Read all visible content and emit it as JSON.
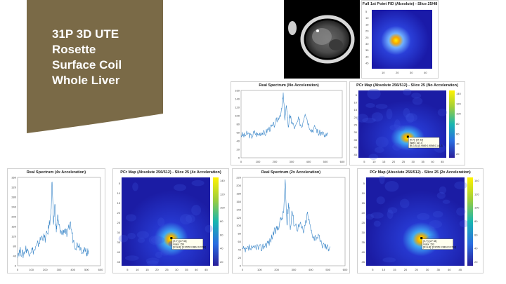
{
  "slide": {
    "title_lines": [
      "31P 3D UTE",
      "Rosette",
      "Surface Coil",
      "Whole Liver"
    ],
    "colors": {
      "title_bg": "#7a6a47",
      "title_text": "#ffffff",
      "line": "#3a86c8"
    }
  },
  "images": {
    "anatomy": {
      "label": "mri-anatomy-image"
    },
    "fid": {
      "title": "Full 1st Point FID (Absolute) - Slice 25/48",
      "ticks": [
        "10",
        "20",
        "30",
        "40"
      ],
      "yticks": [
        "5",
        "10",
        "15",
        "20",
        "25",
        "30",
        "35",
        "40",
        "45"
      ]
    }
  },
  "spectra": [
    {
      "id": "no-accel",
      "title": "Real Spectrum (No Acceleration)",
      "chart_data": {
        "type": "line",
        "xlim": [
          0,
          600
        ],
        "ylim": [
          0,
          160
        ],
        "xticks": [
          "0",
          "100",
          "200",
          "300",
          "400",
          "500",
          "600"
        ],
        "yticks": [
          "0",
          "20",
          "40",
          "60",
          "80",
          "100",
          "120",
          "140",
          "160"
        ],
        "x": [
          0,
          20,
          40,
          60,
          80,
          100,
          120,
          140,
          160,
          180,
          200,
          220,
          240,
          250,
          260,
          270,
          280,
          290,
          300,
          320,
          340,
          360,
          380,
          400,
          420,
          440,
          460,
          480,
          500,
          512
        ],
        "y": [
          55,
          52,
          58,
          50,
          60,
          54,
          62,
          56,
          68,
          72,
          80,
          95,
          110,
          150,
          90,
          125,
          75,
          100,
          85,
          70,
          90,
          75,
          110,
          80,
          65,
          72,
          58,
          60,
          50,
          56
        ]
      }
    },
    {
      "id": "4x-accel",
      "title": "Real Spectrum (4x Acceleration)",
      "chart_data": {
        "type": "line",
        "xlim": [
          0,
          600
        ],
        "ylim": [
          0,
          360
        ],
        "xticks": [
          "0",
          "100",
          "200",
          "300",
          "400",
          "500",
          "600"
        ],
        "yticks": [
          "0",
          "40",
          "80",
          "120",
          "160",
          "200",
          "240",
          "280",
          "320",
          "360"
        ],
        "x": [
          0,
          20,
          40,
          60,
          80,
          100,
          120,
          140,
          160,
          180,
          200,
          220,
          240,
          250,
          260,
          270,
          280,
          290,
          300,
          320,
          340,
          360,
          380,
          400,
          420,
          440,
          460,
          480,
          500,
          512
        ],
        "y": [
          50,
          60,
          45,
          70,
          55,
          65,
          60,
          80,
          100,
          120,
          110,
          140,
          200,
          350,
          150,
          260,
          140,
          200,
          160,
          130,
          150,
          120,
          180,
          110,
          80,
          90,
          70,
          60,
          55,
          62
        ]
      }
    },
    {
      "id": "2x-accel",
      "title": "Real Spectrum (2x Acceleration)",
      "chart_data": {
        "type": "line",
        "xlim": [
          0,
          600
        ],
        "ylim": [
          0,
          220
        ],
        "xticks": [
          "0",
          "100",
          "200",
          "300",
          "400",
          "500",
          "600"
        ],
        "yticks": [
          "0",
          "20",
          "40",
          "60",
          "80",
          "100",
          "120",
          "140",
          "160",
          "180",
          "200",
          "220"
        ],
        "x": [
          0,
          20,
          40,
          60,
          80,
          100,
          120,
          140,
          160,
          180,
          200,
          220,
          240,
          250,
          260,
          270,
          280,
          290,
          300,
          320,
          340,
          360,
          380,
          400,
          420,
          440,
          460,
          480,
          500,
          512
        ],
        "y": [
          40,
          35,
          45,
          38,
          50,
          42,
          48,
          55,
          60,
          80,
          90,
          110,
          130,
          210,
          100,
          160,
          90,
          140,
          110,
          95,
          100,
          85,
          130,
          90,
          70,
          75,
          55,
          50,
          45,
          48
        ]
      }
    }
  ],
  "maps": [
    {
      "id": "pcr-no-accel",
      "title": "PCr Map (Absolute 256/512) - Slice 25 (No Acceleration)",
      "colorbar_ticks": [
        "140",
        "120",
        "100",
        "80",
        "60",
        "40",
        "20"
      ],
      "xticks": [
        "5",
        "10",
        "15",
        "20",
        "25",
        "30",
        "35",
        "40",
        "45"
      ],
      "yticks": [
        "5",
        "10",
        "15",
        "20",
        "25",
        "30",
        "35",
        "40",
        "45"
      ],
      "tooltip": [
        "[X,Y]: [27 33]",
        "Index: 167.5",
        "[R,G,B]: [0.9569 0.9098 0.1412]"
      ]
    },
    {
      "id": "pcr-4x-accel",
      "title": "PCr Map (Absolute 256/512) - Slice 25 (4x Acceleration)",
      "colorbar_ticks": [
        "140",
        "120",
        "100",
        "80",
        "60",
        "40",
        "20"
      ],
      "xticks": [
        "5",
        "10",
        "15",
        "20",
        "25",
        "30",
        "35",
        "40",
        "45"
      ],
      "yticks": [
        "5",
        "10",
        "15",
        "20",
        "25",
        "30",
        "35",
        "40",
        "45"
      ],
      "tooltip": [
        "[X,Y]: [27 33]",
        "Index: 159",
        "[R,G,B]: [0.9765 0.9804 0.0784]"
      ]
    },
    {
      "id": "pcr-2x-accel",
      "title": "PCr Map (Absolute 256/512) - Slice 25 (2x Acceleration)",
      "colorbar_ticks": [
        "140",
        "120",
        "100",
        "80",
        "60",
        "40",
        "20"
      ],
      "xticks": [
        "5",
        "10",
        "15",
        "20",
        "25",
        "30",
        "35",
        "40",
        "45"
      ],
      "yticks": [
        "5",
        "10",
        "15",
        "20",
        "25",
        "30",
        "35",
        "40",
        "45"
      ],
      "tooltip": [
        "[X,Y]: [27 33]",
        "Index: 153",
        "[R,G,B]: [0.9765 0.9804 0.0784]"
      ]
    }
  ]
}
